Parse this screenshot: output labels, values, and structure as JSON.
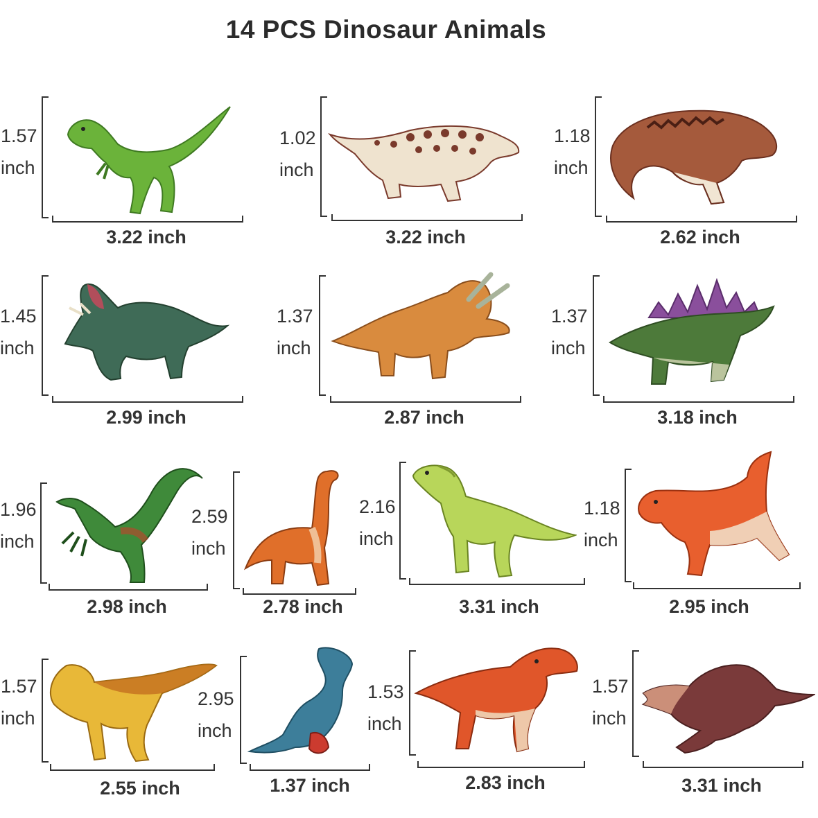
{
  "title": "14 PCS Dinosaur Animals",
  "figures": [
    {
      "id": "trex-green",
      "height": "1.57",
      "unit": "inch",
      "width": "3.22 inch",
      "colors": [
        "#6bb33a",
        "#3f7a22"
      ]
    },
    {
      "id": "ankylosaurus",
      "height": "1.02",
      "unit": "inch",
      "width": "3.22 inch",
      "colors": [
        "#efe3cf",
        "#7a3a2c"
      ]
    },
    {
      "id": "allosaurus-brown",
      "height": "1.18",
      "unit": "inch",
      "width": "2.62 inch",
      "colors": [
        "#a55a3c",
        "#f1e5d3"
      ]
    },
    {
      "id": "triceratops-green",
      "height": "1.45",
      "unit": "inch",
      "width": "2.99 inch",
      "colors": [
        "#3f6b57",
        "#b14e5b"
      ]
    },
    {
      "id": "triceratops-orange",
      "height": "1.37",
      "unit": "inch",
      "width": "2.87 inch",
      "colors": [
        "#d98b3e",
        "#a8b39a"
      ]
    },
    {
      "id": "stegosaurus",
      "height": "1.37",
      "unit": "inch",
      "width": "3.18 inch",
      "colors": [
        "#4d7a3a",
        "#8a4f9c"
      ]
    },
    {
      "id": "velociraptor",
      "height": "1.96",
      "unit": "inch",
      "width": "2.98 inch",
      "colors": [
        "#3f8a3a",
        "#b24a2c"
      ]
    },
    {
      "id": "brachiosaurus",
      "height": "2.59",
      "unit": "inch",
      "width": "2.78 inch",
      "colors": [
        "#e06f2a",
        "#f3d3b0"
      ]
    },
    {
      "id": "raptor-lime",
      "height": "2.16",
      "unit": "inch",
      "width": "3.31 inch",
      "colors": [
        "#b8d65a",
        "#7f9a2f"
      ]
    },
    {
      "id": "carnotaurus",
      "height": "1.18",
      "unit": "inch",
      "width": "2.95 inch",
      "colors": [
        "#e85f2e",
        "#f1e3cc"
      ]
    },
    {
      "id": "pachycephalosaurus",
      "height": "1.57",
      "unit": "inch",
      "width": "2.55 inch",
      "colors": [
        "#e8b838",
        "#c26b1e"
      ]
    },
    {
      "id": "mosasaurus",
      "height": "2.95",
      "unit": "inch",
      "width": "1.37 inch",
      "colors": [
        "#3d7e9a",
        "#cc3b2f"
      ]
    },
    {
      "id": "trex-orange",
      "height": "1.53",
      "unit": "inch",
      "width": "2.83 inch",
      "colors": [
        "#e0562a",
        "#f0dcc0"
      ]
    },
    {
      "id": "spinosaurus",
      "height": "1.57",
      "unit": "inch",
      "width": "3.31 inch",
      "colors": [
        "#7a3a3a",
        "#e0a58a"
      ]
    }
  ]
}
